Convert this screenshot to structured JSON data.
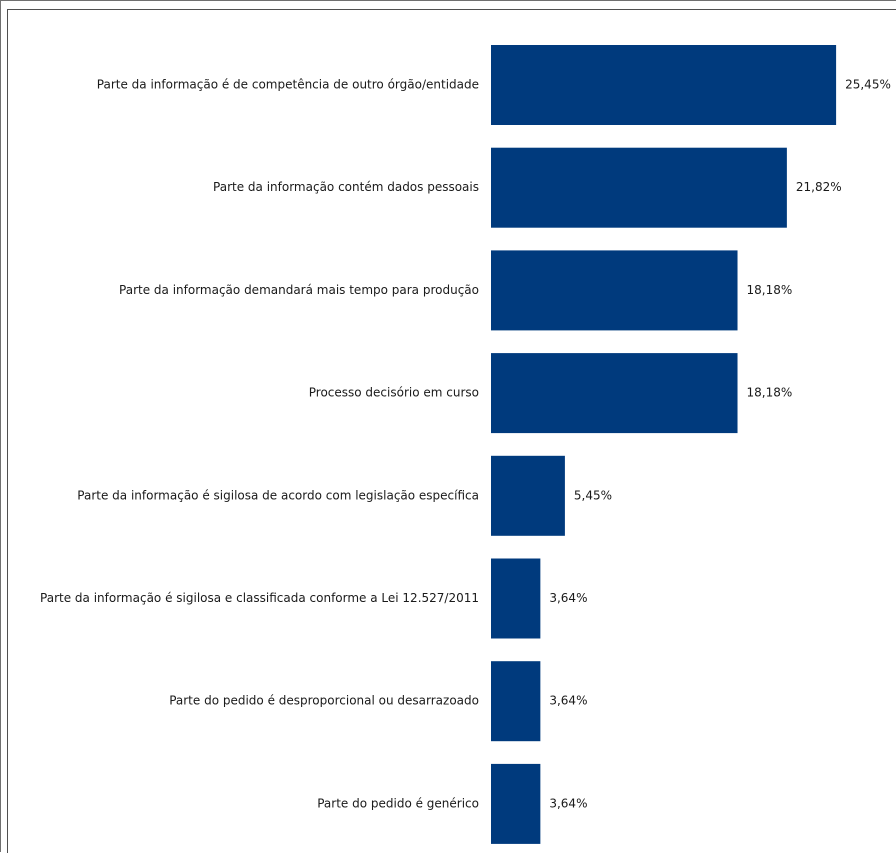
{
  "chart_data": {
    "type": "bar",
    "orientation": "horizontal",
    "categories": [
      "Parte da informação é de competência de outro órgão/entidade",
      "Parte da informação contém dados pessoais",
      "Parte da informação demandará mais tempo para produção",
      "Processo decisório em curso",
      "Parte da informação é sigilosa de acordo com legislação específica",
      "Parte da informação é sigilosa e classificada conforme a Lei 12.527/2011",
      "Parte do pedido é desproporcional ou desarrazoado",
      "Parte do pedido é genérico"
    ],
    "values": [
      25.45,
      21.82,
      18.18,
      18.18,
      5.45,
      3.64,
      3.64,
      3.64
    ],
    "value_labels": [
      "25,45%",
      "21,82%",
      "18,18%",
      "18,18%",
      "5,45%",
      "3,64%",
      "3,64%",
      "3,64%"
    ],
    "title": "",
    "xlabel": "",
    "ylabel": "",
    "xlim": [
      0,
      30
    ],
    "grid": false,
    "legend": "none",
    "bar_color": "#003a7d"
  }
}
